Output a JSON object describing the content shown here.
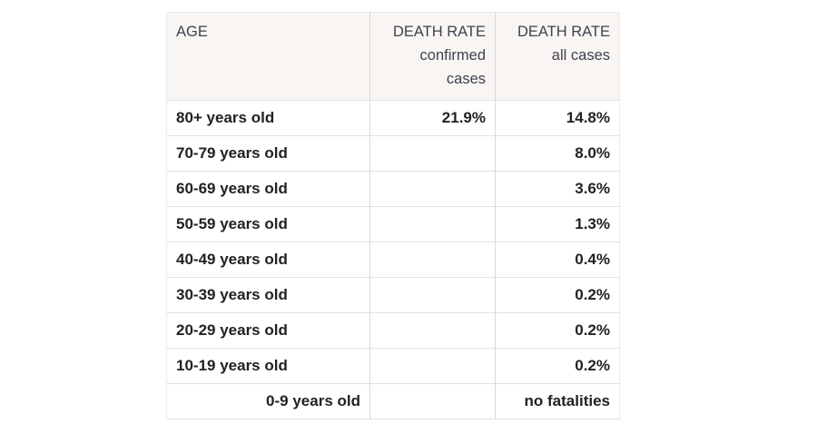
{
  "colors": {
    "header_bg": "#f8f5f3",
    "header_text": "#3d434d",
    "body_text": "#222222",
    "row_border": "#e2e2e2",
    "column_divider": "#d9d9d9",
    "page_bg": "#ffffff"
  },
  "table": {
    "headers": [
      {
        "name": "age",
        "lines": [
          "AGE"
        ]
      },
      {
        "name": "death-rate-confirmed-cases",
        "lines": [
          "DEATH RATE",
          "confirmed",
          "cases"
        ]
      },
      {
        "name": "death-rate-all-cases",
        "lines": [
          "DEATH RATE",
          "all cases"
        ]
      }
    ],
    "rows": [
      {
        "age": "80+ years old",
        "confirmed": "21.9%",
        "all": "14.8%"
      },
      {
        "age": "70-79 years old",
        "confirmed": "",
        "all": "8.0%"
      },
      {
        "age": "60-69 years old",
        "confirmed": "",
        "all": "3.6%"
      },
      {
        "age": "50-59 years old",
        "confirmed": "",
        "all": "1.3%"
      },
      {
        "age": "40-49 years old",
        "confirmed": "",
        "all": "0.4%"
      },
      {
        "age": "30-39 years old",
        "confirmed": "",
        "all": "0.2%"
      },
      {
        "age": "20-29 years old",
        "confirmed": "",
        "all": "0.2%"
      },
      {
        "age": "10-19 years old",
        "confirmed": "",
        "all": "0.2%"
      },
      {
        "age": "0-9 years old",
        "confirmed": "",
        "all": "no fatalities"
      }
    ]
  }
}
